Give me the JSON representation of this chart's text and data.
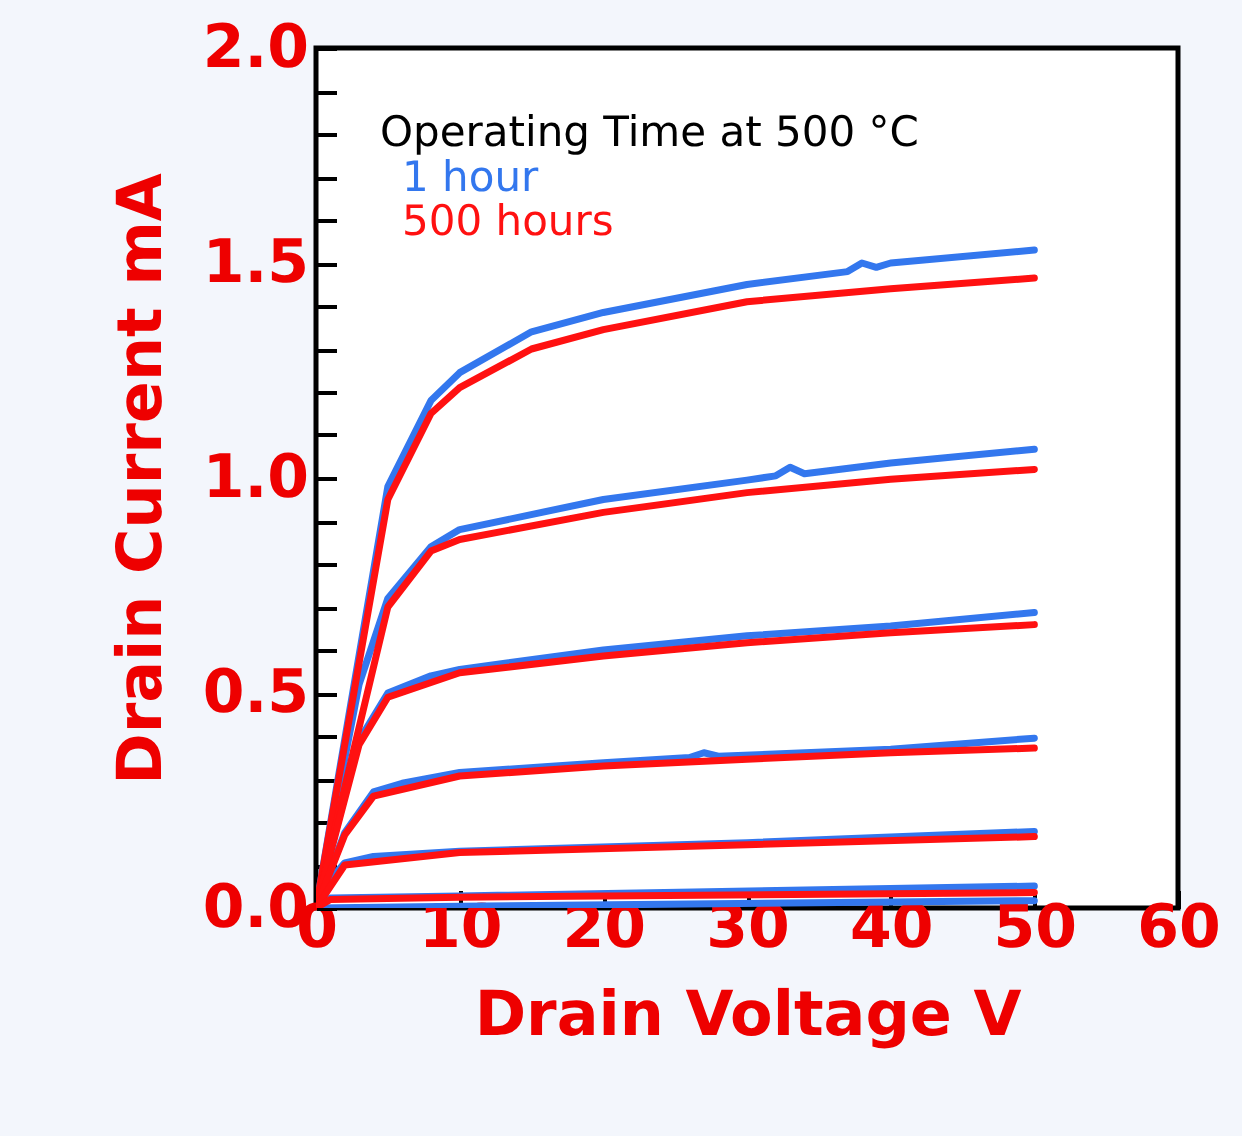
{
  "chart_data": {
    "type": "line",
    "xlabel": "Drain Voltage  V",
    "ylabel": "Drain Current mA",
    "legend_title": "Operating Time at 500 °C",
    "legend": "top left",
    "xlim": [
      0,
      60
    ],
    "xticks": [
      0,
      10,
      20,
      30,
      40,
      50,
      60
    ],
    "ylim": [
      0,
      2.0
    ],
    "yticks": [
      {
        "value": 0,
        "label": "0.0"
      },
      {
        "value": 0.1,
        "label": null
      },
      {
        "value": 0.2,
        "label": null
      },
      {
        "value": 0.3,
        "label": null
      },
      {
        "value": 0.4,
        "label": null
      },
      {
        "value": 0.5,
        "label": "0.5"
      },
      {
        "value": 0.6,
        "label": null
      },
      {
        "value": 0.7,
        "label": null
      },
      {
        "value": 0.8,
        "label": null
      },
      {
        "value": 0.9,
        "label": null
      },
      {
        "value": 1.0,
        "label": "1.0"
      },
      {
        "value": 1.1,
        "label": null
      },
      {
        "value": 1.2,
        "label": null
      },
      {
        "value": 1.3,
        "label": null
      },
      {
        "value": 1.4,
        "label": null
      },
      {
        "value": 1.5,
        "label": "1.5"
      },
      {
        "value": 1.6,
        "label": null
      },
      {
        "value": 1.7,
        "label": null
      },
      {
        "value": 1.8,
        "label": null
      },
      {
        "value": 1.9,
        "label": null
      },
      {
        "value": 2.0,
        "label": "2.0"
      }
    ],
    "line_style": "solid",
    "marker": "none",
    "series": [
      {
        "name": "1 hour",
        "color": "#3377ee",
        "x": [
          0,
          5,
          8,
          10,
          15,
          20,
          30,
          37,
          38,
          39,
          40,
          50
        ],
        "values": [
          0,
          0.98,
          1.18,
          1.245,
          1.34,
          1.385,
          1.45,
          1.48,
          1.5,
          1.49,
          1.5,
          1.53
        ]
      },
      {
        "color": "#3377ee",
        "x": [
          0,
          3,
          5,
          8,
          10,
          20,
          30,
          32,
          33,
          34,
          40,
          50
        ],
        "values": [
          0,
          0.52,
          0.72,
          0.84,
          0.88,
          0.95,
          0.995,
          1.005,
          1.025,
          1.01,
          1.035,
          1.067
        ]
      },
      {
        "color": "#3377ee",
        "x": [
          0,
          3,
          5,
          8,
          10,
          20,
          30,
          40,
          50
        ],
        "values": [
          0,
          0.39,
          0.5,
          0.54,
          0.555,
          0.6,
          0.633,
          0.656,
          0.687
        ]
      },
      {
        "color": "#3377ee",
        "x": [
          0,
          2,
          4,
          6,
          10,
          20,
          26,
          27,
          28,
          40,
          50
        ],
        "values": [
          0,
          0.175,
          0.27,
          0.29,
          0.315,
          0.338,
          0.35,
          0.361,
          0.353,
          0.369,
          0.395
        ]
      },
      {
        "color": "#3377ee",
        "x": [
          0,
          1,
          2,
          4,
          10,
          30,
          50
        ],
        "values": [
          0,
          0.067,
          0.105,
          0.12,
          0.132,
          0.152,
          0.178
        ]
      },
      {
        "color": "#3377ee",
        "x": [
          0,
          1,
          10,
          50
        ],
        "values": [
          0,
          0.023,
          0.028,
          0.051
        ]
      },
      {
        "color": "#3377ee",
        "x": [
          0,
          10,
          50
        ],
        "values": [
          0,
          0.004,
          0.017
        ]
      },
      {
        "name": "500 hours",
        "color": "#ff1111",
        "x": [
          0,
          5,
          8,
          10,
          15,
          20,
          30,
          40,
          50
        ],
        "values": [
          0,
          0.95,
          1.15,
          1.21,
          1.3,
          1.345,
          1.41,
          1.44,
          1.465
        ]
      },
      {
        "color": "#ff1111",
        "x": [
          0,
          5,
          8,
          10,
          20,
          30,
          40,
          50
        ],
        "values": [
          0,
          0.7,
          0.83,
          0.857,
          0.92,
          0.966,
          0.997,
          1.02
        ]
      },
      {
        "color": "#ff1111",
        "x": [
          0,
          3,
          5,
          10,
          20,
          30,
          40,
          50
        ],
        "values": [
          0,
          0.38,
          0.49,
          0.547,
          0.586,
          0.617,
          0.64,
          0.659
        ]
      },
      {
        "color": "#ff1111",
        "x": [
          0,
          2,
          4,
          10,
          20,
          30,
          40,
          50
        ],
        "values": [
          0,
          0.17,
          0.26,
          0.307,
          0.33,
          0.346,
          0.361,
          0.372
        ]
      },
      {
        "color": "#ff1111",
        "x": [
          0,
          2,
          10,
          30,
          50
        ],
        "values": [
          0,
          0.1,
          0.129,
          0.147,
          0.166
        ]
      },
      {
        "color": "#ff1111",
        "x": [
          0,
          1,
          10,
          50
        ],
        "values": [
          0,
          0.02,
          0.025,
          0.036
        ]
      }
    ]
  }
}
